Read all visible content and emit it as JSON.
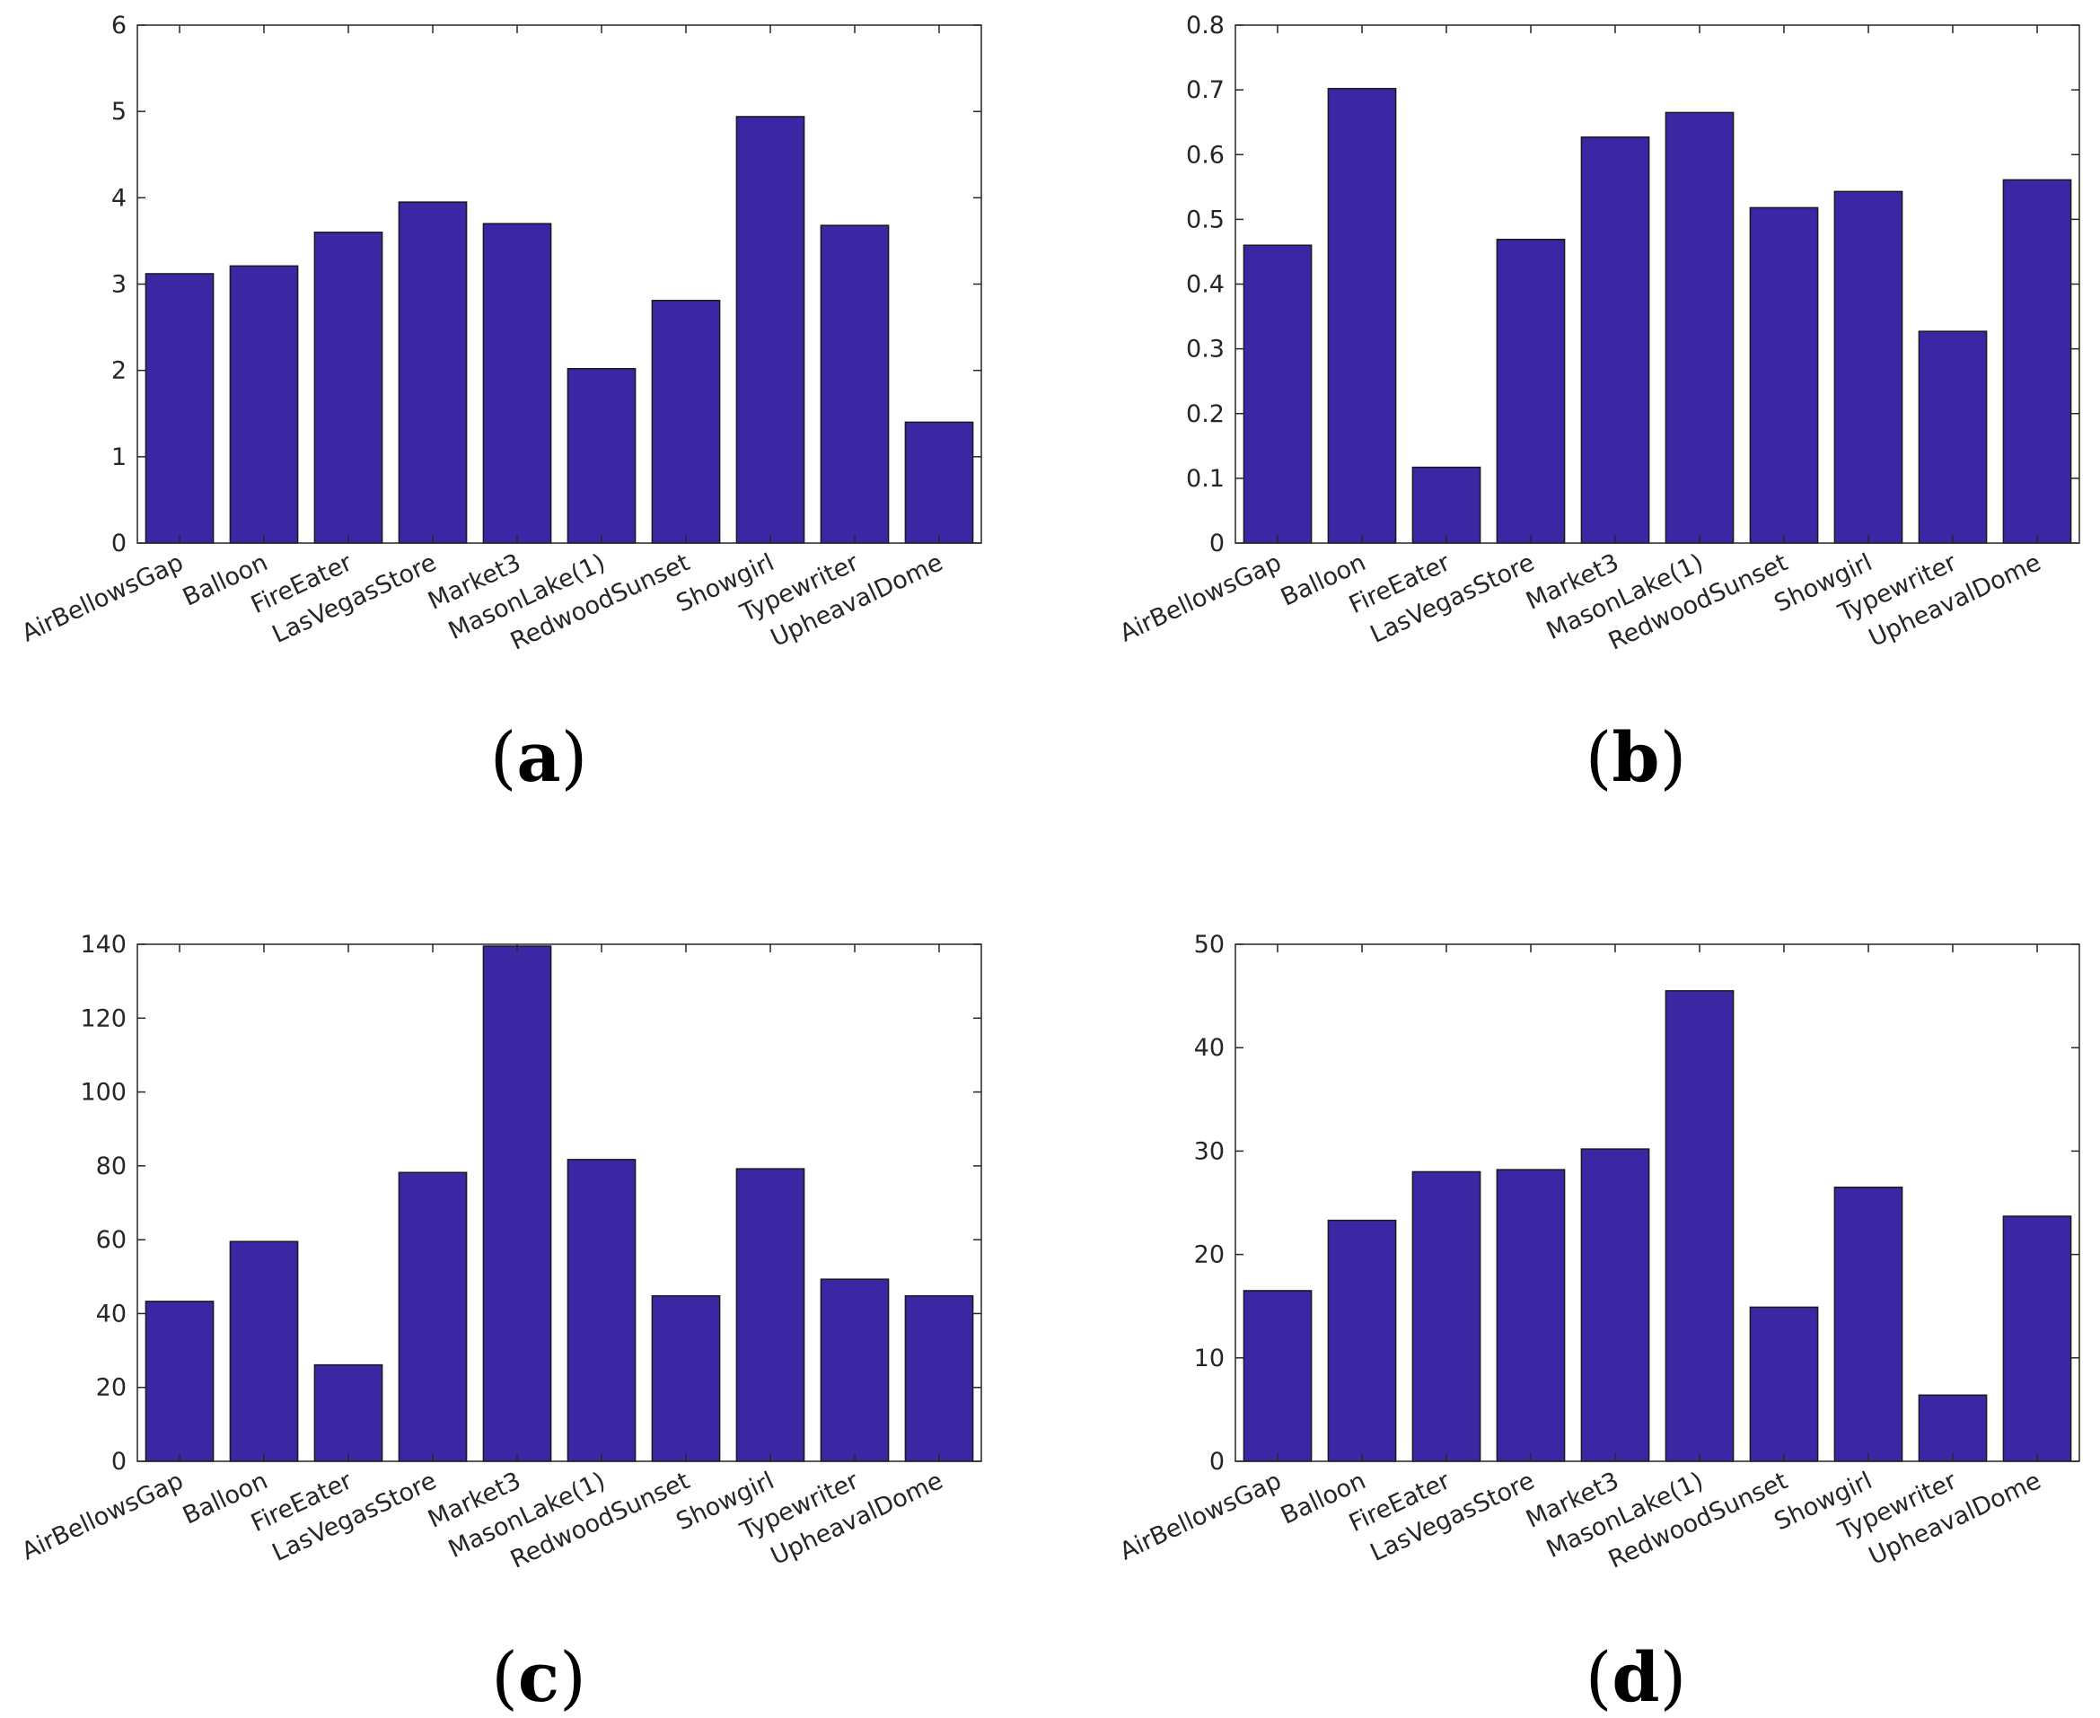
{
  "colors": {
    "bar": "#3b27a3"
  },
  "chart_data": [
    {
      "type": "bar",
      "label": "(a)",
      "categories": [
        "AirBellowsGap",
        "Balloon",
        "FireEater",
        "LasVegasStore",
        "Market3",
        "MasonLake(1)",
        "RedwoodSunset",
        "Showgirl",
        "Typewriter",
        "UpheavalDome"
      ],
      "values": [
        3.12,
        3.21,
        3.6,
        3.95,
        3.7,
        2.02,
        2.81,
        4.94,
        3.68,
        1.4
      ],
      "ylim": [
        0,
        6
      ],
      "yticks": [
        0,
        1,
        2,
        3,
        4,
        5,
        6
      ],
      "ytick_labels": [
        "0",
        "1",
        "2",
        "3",
        "4",
        "5",
        "6"
      ],
      "grid": false
    },
    {
      "type": "bar",
      "label": "(b)",
      "categories": [
        "AirBellowsGap",
        "Balloon",
        "FireEater",
        "LasVegasStore",
        "Market3",
        "MasonLake(1)",
        "RedwoodSunset",
        "Showgirl",
        "Typewriter",
        "UpheavalDome"
      ],
      "values": [
        0.46,
        0.702,
        0.117,
        0.469,
        0.627,
        0.665,
        0.518,
        0.543,
        0.327,
        0.561
      ],
      "ylim": [
        0,
        0.8
      ],
      "yticks": [
        0,
        0.1,
        0.2,
        0.3,
        0.4,
        0.5,
        0.6,
        0.7,
        0.8
      ],
      "ytick_labels": [
        "0",
        "0.1",
        "0.2",
        "0.3",
        "0.4",
        "0.5",
        "0.6",
        "0.7",
        "0.8"
      ],
      "grid": false
    },
    {
      "type": "bar",
      "label": "(c)",
      "categories": [
        "AirBellowsGap",
        "Balloon",
        "FireEater",
        "LasVegasStore",
        "Market3",
        "MasonLake(1)",
        "RedwoodSunset",
        "Showgirl",
        "Typewriter",
        "UpheavalDome"
      ],
      "values": [
        43.3,
        59.5,
        26.1,
        78.2,
        139.5,
        81.7,
        44.8,
        79.2,
        49.3,
        44.8
      ],
      "ylim": [
        0,
        140
      ],
      "yticks": [
        0,
        20,
        40,
        60,
        80,
        100,
        120,
        140
      ],
      "ytick_labels": [
        "0",
        "20",
        "40",
        "60",
        "80",
        "100",
        "120",
        "140"
      ],
      "grid": false
    },
    {
      "type": "bar",
      "label": "(d)",
      "categories": [
        "AirBellowsGap",
        "Balloon",
        "FireEater",
        "LasVegasStore",
        "Market3",
        "MasonLake(1)",
        "RedwoodSunset",
        "Showgirl",
        "Typewriter",
        "UpheavalDome"
      ],
      "values": [
        16.5,
        23.3,
        28.0,
        28.2,
        30.2,
        45.5,
        14.9,
        26.5,
        6.4,
        23.7
      ],
      "ylim": [
        0,
        50
      ],
      "yticks": [
        0,
        10,
        20,
        30,
        40,
        50
      ],
      "ytick_labels": [
        "0",
        "10",
        "20",
        "30",
        "40",
        "50"
      ],
      "grid": false
    }
  ]
}
